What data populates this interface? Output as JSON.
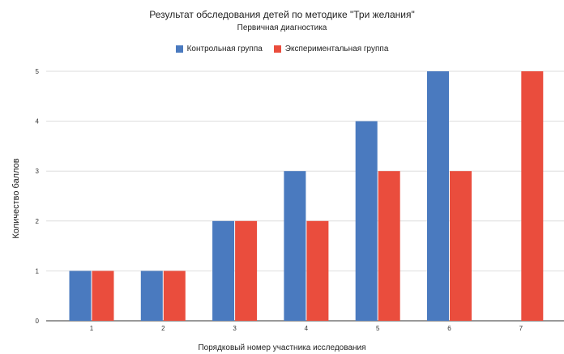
{
  "chart_data": {
    "type": "bar",
    "title": "Результат обследования детей по методике \"Три желания\"",
    "subtitle": "Первичная диагностика",
    "xlabel": "Порядковый номер участника исследования",
    "ylabel": "Количество баллов",
    "categories": [
      "1",
      "2",
      "3",
      "4",
      "5",
      "6",
      "7"
    ],
    "series": [
      {
        "name": "Контрольная группа",
        "color": "#4a7abf",
        "values": [
          1,
          1,
          2,
          3,
          4,
          5,
          0
        ]
      },
      {
        "name": "Экспериментальная группа",
        "color": "#ea4d3d",
        "values": [
          1,
          1,
          2,
          2,
          3,
          3,
          5
        ]
      }
    ],
    "ylim": [
      0,
      5
    ],
    "yticks": [
      "0",
      "1",
      "2",
      "3",
      "4",
      "5"
    ],
    "grid": true,
    "legend": "top-center"
  }
}
